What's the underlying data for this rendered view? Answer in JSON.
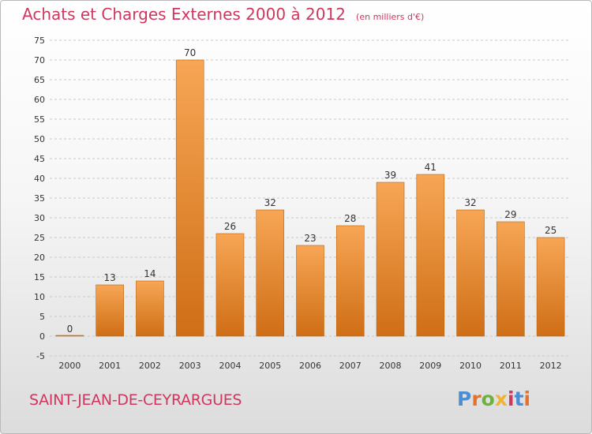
{
  "title": "Achats et Charges Externes 2000 à 2012",
  "subtitle": "(en milliers d'€)",
  "place": "SAINT-JEAN-DE-CEYRARGUES",
  "logo": {
    "text": "Proxiti",
    "letter_colors": [
      "#4a8fd6",
      "#e8712a",
      "#6cb33e",
      "#f2b233",
      "#d0365e",
      "#4a8fd6",
      "#e8712a"
    ]
  },
  "colors": {
    "bar_top": "#f7a655",
    "bar_bottom": "#cf6e16",
    "bar_edge": "#b8650f",
    "title": "#d0365e",
    "grid": "#c8c8c8",
    "axis_text": "#333333"
  },
  "chart_data": {
    "type": "bar",
    "title": "Achats et Charges Externes 2000 à 2012",
    "subtitle": "(en milliers d'€)",
    "xlabel": "",
    "ylabel": "",
    "categories": [
      "2000",
      "2001",
      "2002",
      "2003",
      "2004",
      "2005",
      "2006",
      "2007",
      "2008",
      "2009",
      "2010",
      "2011",
      "2012"
    ],
    "values": [
      0,
      13,
      14,
      70,
      26,
      32,
      23,
      28,
      39,
      41,
      32,
      29,
      25
    ],
    "ylim": [
      -5,
      75
    ],
    "yticks": [
      -5,
      0,
      5,
      10,
      15,
      20,
      25,
      30,
      35,
      40,
      45,
      50,
      55,
      60,
      65,
      70,
      75
    ],
    "grid": "horizontal dashed",
    "data_labels": true,
    "legend": "none"
  }
}
